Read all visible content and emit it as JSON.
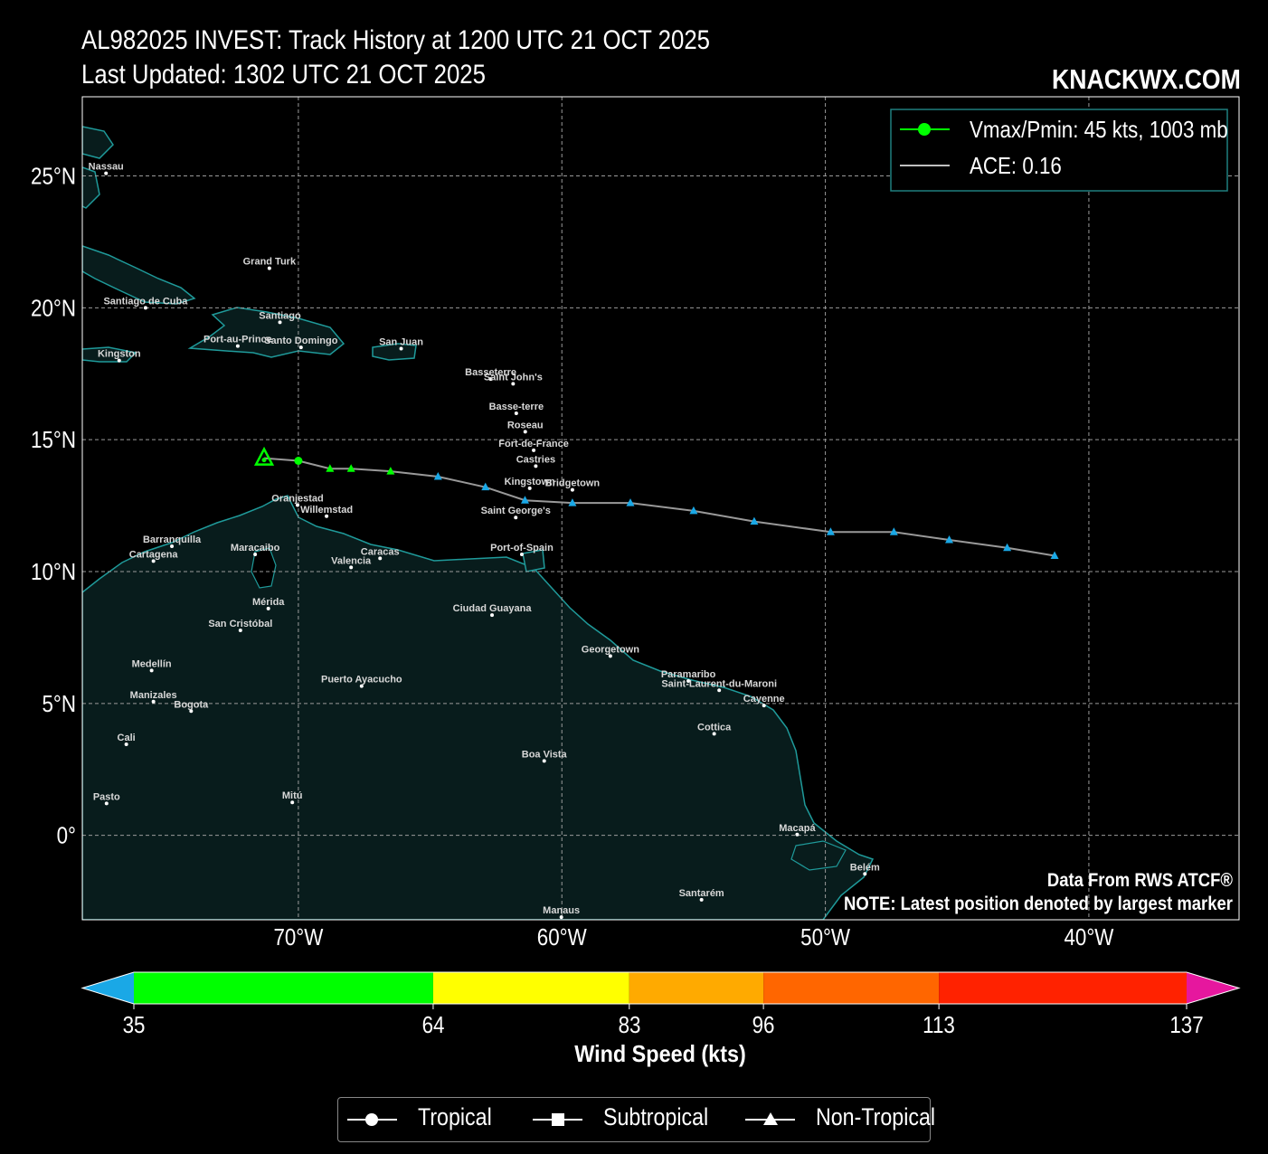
{
  "header": {
    "title_line1": "AL982025 INVEST: Track History at 1200 UTC 21 OCT 2025",
    "title_line2": "Last Updated: 1302 UTC 21 OCT 2025",
    "brand": "KNACKWX.COM"
  },
  "map": {
    "lon_range": [
      -78.2,
      -34.3
    ],
    "lat_range": [
      -3.2,
      28.0
    ],
    "x_ticks": [
      {
        "lon": -70,
        "label": "70°W"
      },
      {
        "lon": -60,
        "label": "60°W"
      },
      {
        "lon": -50,
        "label": "50°W"
      },
      {
        "lon": -40,
        "label": "40°W"
      }
    ],
    "y_ticks": [
      {
        "lat": 25,
        "label": "25°N"
      },
      {
        "lat": 20,
        "label": "20°N"
      },
      {
        "lat": 15,
        "label": "15°N"
      },
      {
        "lat": 10,
        "label": "10°N"
      },
      {
        "lat": 5,
        "label": "5°N"
      },
      {
        "lat": 0,
        "label": "0°"
      }
    ],
    "gridlines": true,
    "colors": {
      "land": "#081c1c",
      "coast": "#1f9a9a",
      "ocean": "#000000",
      "grid": "#9a9a9a",
      "track": "#999999"
    },
    "cities": [
      {
        "name": "Nassau",
        "lon": -77.3,
        "lat": 25.1
      },
      {
        "name": "Grand Turk",
        "lon": -71.1,
        "lat": 21.5
      },
      {
        "name": "Santiago de Cuba",
        "lon": -75.8,
        "lat": 20.0
      },
      {
        "name": "Santiago",
        "lon": -70.7,
        "lat": 19.45
      },
      {
        "name": "Port-au-Prince",
        "lon": -72.3,
        "lat": 18.55
      },
      {
        "name": "Santo Domingo",
        "lon": -69.9,
        "lat": 18.5
      },
      {
        "name": "Kingston",
        "lon": -76.8,
        "lat": 18.0
      },
      {
        "name": "San Juan",
        "lon": -66.1,
        "lat": 18.45
      },
      {
        "name": "Basseterre",
        "lon": -62.7,
        "lat": 17.3
      },
      {
        "name": "Saint John's",
        "lon": -61.85,
        "lat": 17.12
      },
      {
        "name": "Basse-terre",
        "lon": -61.73,
        "lat": 16.0
      },
      {
        "name": "Roseau",
        "lon": -61.39,
        "lat": 15.3
      },
      {
        "name": "Fort-de-France",
        "lon": -61.07,
        "lat": 14.6
      },
      {
        "name": "Castries",
        "lon": -60.99,
        "lat": 14.0
      },
      {
        "name": "Kingstown",
        "lon": -61.22,
        "lat": 13.16
      },
      {
        "name": "Bridgetown",
        "lon": -59.6,
        "lat": 13.1
      },
      {
        "name": "Saint George's",
        "lon": -61.75,
        "lat": 12.05
      },
      {
        "name": "Oranjestad",
        "lon": -70.03,
        "lat": 12.52
      },
      {
        "name": "Willemstad",
        "lon": -68.93,
        "lat": 12.1
      },
      {
        "name": "Port-of-Spain",
        "lon": -61.52,
        "lat": 10.65
      },
      {
        "name": "Barranquilla",
        "lon": -74.8,
        "lat": 10.96
      },
      {
        "name": "Cartagena",
        "lon": -75.5,
        "lat": 10.4
      },
      {
        "name": "Maracaibo",
        "lon": -71.64,
        "lat": 10.65
      },
      {
        "name": "Caracas",
        "lon": -66.9,
        "lat": 10.5
      },
      {
        "name": "Valencia",
        "lon": -68.0,
        "lat": 10.16
      },
      {
        "name": "Mérida",
        "lon": -71.14,
        "lat": 8.6
      },
      {
        "name": "San Cristóbal",
        "lon": -72.2,
        "lat": 7.77
      },
      {
        "name": "Ciudad Guayana",
        "lon": -62.65,
        "lat": 8.35
      },
      {
        "name": "Georgetown",
        "lon": -58.16,
        "lat": 6.8
      },
      {
        "name": "Paramaribo",
        "lon": -55.2,
        "lat": 5.85
      },
      {
        "name": "Saint-Laurent-du-Maroni",
        "lon": -54.03,
        "lat": 5.5
      },
      {
        "name": "Cayenne",
        "lon": -52.33,
        "lat": 4.92
      },
      {
        "name": "Medellín",
        "lon": -75.57,
        "lat": 6.25
      },
      {
        "name": "Manizales",
        "lon": -75.5,
        "lat": 5.07
      },
      {
        "name": "Bogota",
        "lon": -74.07,
        "lat": 4.71
      },
      {
        "name": "Puerto Ayacucho",
        "lon": -67.6,
        "lat": 5.66
      },
      {
        "name": "Cottica",
        "lon": -54.22,
        "lat": 3.85
      },
      {
        "name": "Cali",
        "lon": -76.53,
        "lat": 3.45
      },
      {
        "name": "Boa Vista",
        "lon": -60.67,
        "lat": 2.82
      },
      {
        "name": "Pasto",
        "lon": -77.28,
        "lat": 1.21
      },
      {
        "name": "Mitú",
        "lon": -70.23,
        "lat": 1.25
      },
      {
        "name": "Macapá",
        "lon": -51.07,
        "lat": 0.03
      },
      {
        "name": "Belém",
        "lon": -48.5,
        "lat": -1.46
      },
      {
        "name": "Santarém",
        "lon": -54.7,
        "lat": -2.44
      },
      {
        "name": "Manaus",
        "lon": -60.02,
        "lat": -3.1
      }
    ],
    "track": [
      {
        "lon": -41.3,
        "lat": 10.6,
        "type": "non-tropical"
      },
      {
        "lon": -43.1,
        "lat": 10.9,
        "type": "non-tropical"
      },
      {
        "lon": -45.3,
        "lat": 11.2,
        "type": "non-tropical"
      },
      {
        "lon": -47.4,
        "lat": 11.5,
        "type": "non-tropical"
      },
      {
        "lon": -49.8,
        "lat": 11.5,
        "type": "non-tropical"
      },
      {
        "lon": -52.7,
        "lat": 11.9,
        "type": "non-tropical"
      },
      {
        "lon": -55.0,
        "lat": 12.3,
        "type": "non-tropical"
      },
      {
        "lon": -57.4,
        "lat": 12.6,
        "type": "non-tropical"
      },
      {
        "lon": -59.6,
        "lat": 12.6,
        "type": "non-tropical"
      },
      {
        "lon": -61.4,
        "lat": 12.7,
        "type": "non-tropical"
      },
      {
        "lon": -62.9,
        "lat": 13.2,
        "type": "non-tropical"
      },
      {
        "lon": -64.7,
        "lat": 13.6,
        "type": "non-tropical"
      },
      {
        "lon": -66.5,
        "lat": 13.8,
        "type": "non-tropical"
      },
      {
        "lon": -68.0,
        "lat": 13.9,
        "type": "non-tropical"
      },
      {
        "lon": -68.8,
        "lat": 13.9,
        "type": "non-tropical"
      },
      {
        "lon": -70.0,
        "lat": 14.2,
        "type": "tropical"
      },
      {
        "lon": -71.3,
        "lat": 14.3,
        "type": "non-tropical",
        "latest": true
      }
    ]
  },
  "legend": {
    "vmax_label": "Vmax/Pmin: 45 kts, 1003 mb",
    "ace_label": "ACE: 0.16",
    "marker_color": "#00ff00"
  },
  "notes": {
    "source": "Data From RWS ATCF®",
    "note": "NOTE: Latest position denoted by largest marker"
  },
  "colorbar": {
    "title": "Wind Speed (kts)",
    "under_color": "#1aa8e6",
    "over_color": "#e6179e",
    "bins": [
      {
        "from": 35,
        "to": 64,
        "color": "#00ff00"
      },
      {
        "from": 64,
        "to": 83,
        "color": "#ffff00"
      },
      {
        "from": 83,
        "to": 96,
        "color": "#ffaa00"
      },
      {
        "from": 96,
        "to": 113,
        "color": "#ff6600"
      },
      {
        "from": 113,
        "to": 137,
        "color": "#ff2200"
      }
    ],
    "ticks": [
      "35",
      "64",
      "83",
      "96",
      "113",
      "137"
    ]
  },
  "bottom_legend": {
    "tropical": "Tropical",
    "subtropical": "Subtropical",
    "non_tropical": "Non-Tropical"
  }
}
